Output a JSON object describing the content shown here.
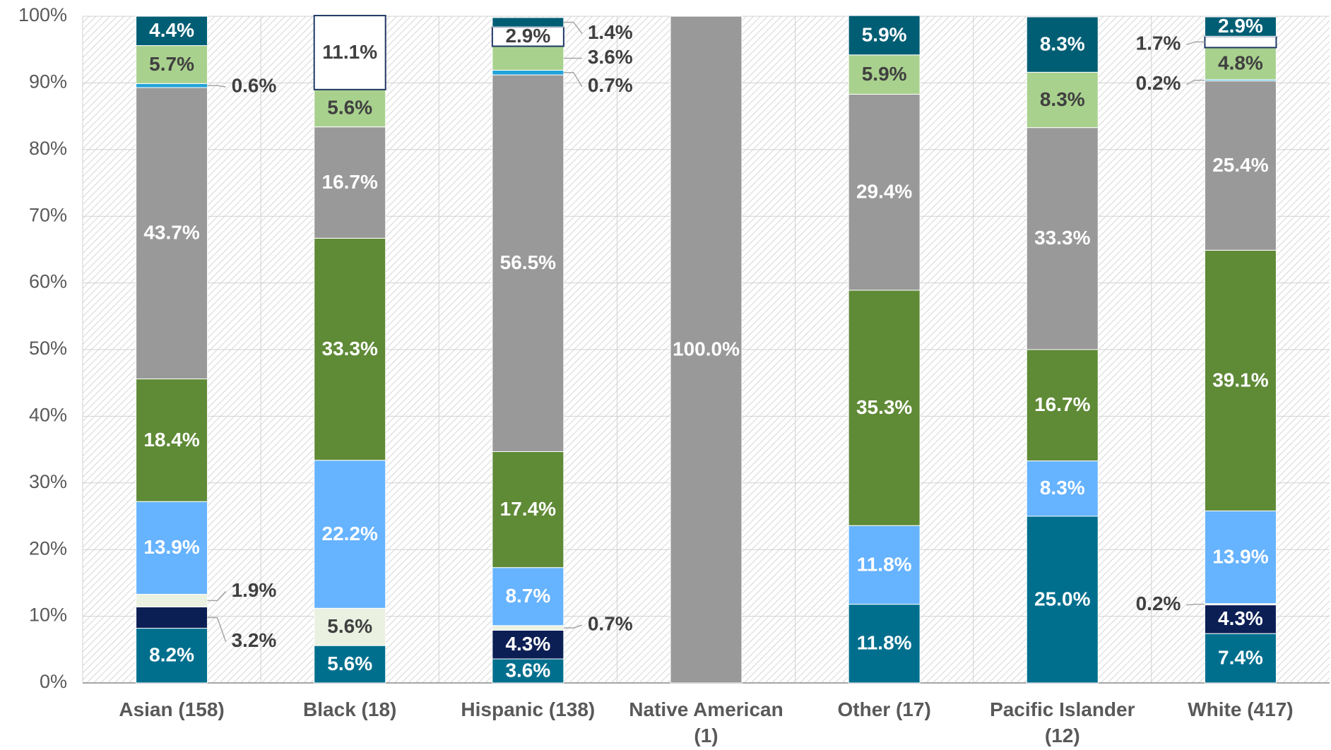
{
  "chart_data": {
    "type": "stacked_bar",
    "categories": [
      "Asian (158)",
      "Black (18)",
      "Hispanic (138)",
      "Native American (1)",
      "Other (17)",
      "Pacific Islander (12)",
      "White (417)"
    ],
    "series": [
      {
        "color": "#006f8e",
        "values": [
          8.2,
          5.6,
          3.6,
          null,
          11.8,
          25.0,
          7.4
        ],
        "value_labels": [
          "8.2%",
          "5.6%",
          "3.6%",
          null,
          "11.8%",
          "25.0%",
          "7.4%"
        ]
      },
      {
        "color": "#0c1f55",
        "values": [
          3.2,
          null,
          4.3,
          null,
          null,
          null,
          4.3
        ],
        "value_labels": [
          "3.2%",
          null,
          "4.3%",
          null,
          null,
          null,
          "4.3%"
        ]
      },
      {
        "color": "#eaf1e1",
        "values": [
          1.9,
          5.6,
          0.7,
          null,
          null,
          null,
          0.2
        ],
        "value_labels": [
          "1.9%",
          "5.6%",
          "0.7%",
          null,
          null,
          null,
          "0.2%"
        ]
      },
      {
        "color": "#66b3ff",
        "values": [
          13.9,
          22.2,
          8.7,
          null,
          11.8,
          8.3,
          13.9
        ],
        "value_labels": [
          "13.9%",
          "22.2%",
          "8.7%",
          null,
          "11.8%",
          "8.3%",
          "13.9%"
        ]
      },
      {
        "color": "#5f8a36",
        "values": [
          18.4,
          33.3,
          17.4,
          null,
          35.3,
          16.7,
          39.1
        ],
        "value_labels": [
          "18.4%",
          "33.3%",
          "17.4%",
          null,
          "35.3%",
          "16.7%",
          "39.1%"
        ]
      },
      {
        "color": "#999999",
        "values": [
          43.7,
          16.7,
          56.5,
          100.0,
          29.4,
          33.3,
          25.4
        ],
        "value_labels": [
          "43.7%",
          "16.7%",
          "56.5%",
          "100.0%",
          "29.4%",
          "33.3%",
          "25.4%"
        ]
      },
      {
        "color": "#22a3d9",
        "values": [
          0.6,
          null,
          0.7,
          null,
          null,
          null,
          0.2
        ],
        "value_labels": [
          "0.6%",
          null,
          "0.7%",
          null,
          null,
          null,
          "0.2%"
        ]
      },
      {
        "color": "#a9d18e",
        "values": [
          5.7,
          5.6,
          3.6,
          null,
          5.9,
          8.3,
          4.8
        ],
        "value_labels": [
          "5.7%",
          "5.6%",
          "3.6%",
          null,
          "5.9%",
          "8.3%",
          "4.8%"
        ]
      },
      {
        "color": "#ffffff",
        "values": [
          null,
          11.1,
          2.9,
          null,
          null,
          null,
          1.7
        ],
        "value_labels": [
          null,
          "11.1%",
          "2.9%",
          null,
          null,
          null,
          "1.7%"
        ]
      },
      {
        "color": "#005e74",
        "values": [
          4.4,
          null,
          1.4,
          null,
          5.9,
          8.3,
          2.9
        ],
        "value_labels": [
          "4.4%",
          null,
          "1.4%",
          null,
          "5.9%",
          "8.3%",
          "2.9%"
        ]
      }
    ],
    "ylim": [
      0,
      100
    ],
    "yticks": [
      {
        "value": 0,
        "label": "0%"
      },
      {
        "value": 10,
        "label": "10%"
      },
      {
        "value": 20,
        "label": "20%"
      },
      {
        "value": 30,
        "label": "30%"
      },
      {
        "value": 40,
        "label": "40%"
      },
      {
        "value": 50,
        "label": "50%"
      },
      {
        "value": 60,
        "label": "60%"
      },
      {
        "value": 70,
        "label": "70%"
      },
      {
        "value": 80,
        "label": "80%"
      },
      {
        "value": 90,
        "label": "90%"
      },
      {
        "value": 100,
        "label": "100%"
      }
    ],
    "grid": true
  }
}
